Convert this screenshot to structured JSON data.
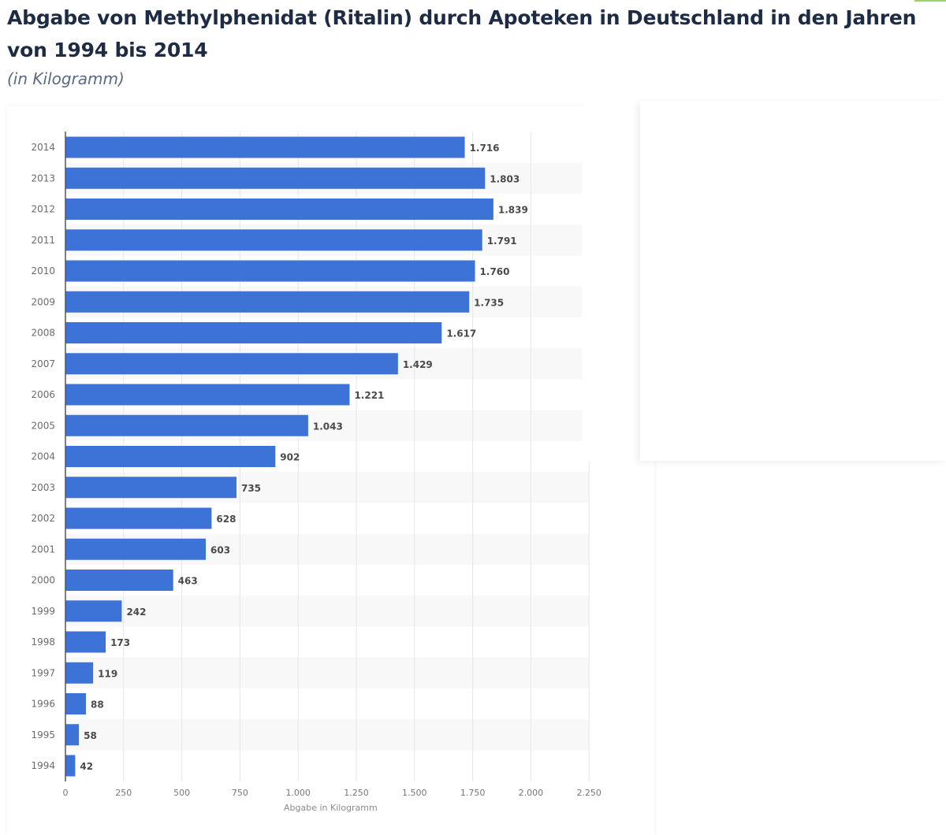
{
  "header": {
    "title": "Abgabe von Methylphenidat (Ritalin) durch Apoteken in Deutschland in den Jahren von 1994 bis 2014",
    "subtitle": "(in Kilogramm)"
  },
  "colors": {
    "bar": "#3d72d7",
    "title": "#1d2b44",
    "stripe": "#f8f8f8",
    "grid": "#e6e6e6",
    "axis": "#555555"
  },
  "chart_data": {
    "type": "bar",
    "orientation": "horizontal",
    "title": "Abgabe von Methylphenidat (Ritalin) durch Apoteken in Deutschland in den Jahren von 1994 bis 2014",
    "subtitle": "(in Kilogramm)",
    "xlabel": "Abgabe in Kilogramm",
    "ylabel": "",
    "categories": [
      "2014",
      "2013",
      "2012",
      "2011",
      "2010",
      "2009",
      "2008",
      "2007",
      "2006",
      "2005",
      "2004",
      "2003",
      "2002",
      "2001",
      "2000",
      "1999",
      "1998",
      "1997",
      "1996",
      "1995",
      "1994"
    ],
    "values": [
      1716,
      1803,
      1839,
      1791,
      1760,
      1735,
      1617,
      1429,
      1221,
      1043,
      902,
      735,
      628,
      603,
      463,
      242,
      173,
      119,
      88,
      58,
      42
    ],
    "value_labels": [
      "1.716",
      "1.803",
      "1.839",
      "1.791",
      "1.760",
      "1.735",
      "1.617",
      "1.429",
      "1.221",
      "1.043",
      "902",
      "735",
      "628",
      "603",
      "463",
      "242",
      "173",
      "119",
      "88",
      "58",
      "42"
    ],
    "xlim": [
      0,
      2250
    ],
    "x_ticks": [
      0,
      250,
      500,
      750,
      1000,
      1250,
      1500,
      1750,
      2000,
      2250
    ],
    "x_tick_labels": [
      "0",
      "250",
      "500",
      "750",
      "1.000",
      "1.250",
      "1.500",
      "1.750",
      "2.000",
      "2.250"
    ],
    "grid": true,
    "legend": "none"
  }
}
